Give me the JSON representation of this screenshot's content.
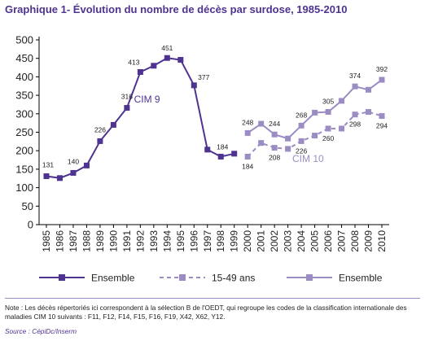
{
  "title": "Graphique 1- Évolution du nombre de décès par surdose, 1985-2010",
  "note": "Note : Les décès répertoriés ici correspondent à la sélection B de l'OEDT, qui regroupe les codes de la classification internationale des maladies CIM 10 suivants : F11, F12, F14, F15, F16, F19, X42, X62, Y12.",
  "source": "Source : CépiDc/Inserm",
  "colors": {
    "cim9": "#4e3391",
    "cim10": "#9b8cc4",
    "title": "#4e3391"
  },
  "chart_data": {
    "type": "line",
    "title": "Graphique 1- Évolution du nombre de décès par surdose, 1985-2010",
    "xlabel": "",
    "ylabel": "",
    "ylim": [
      0,
      500
    ],
    "yticks": [
      0,
      50,
      100,
      150,
      200,
      250,
      300,
      350,
      400,
      450,
      500
    ],
    "x": [
      1985,
      1986,
      1987,
      1988,
      1989,
      1990,
      1991,
      1992,
      1993,
      1994,
      1995,
      1996,
      1997,
      1998,
      1999,
      2000,
      2001,
      2002,
      2003,
      2004,
      2005,
      2006,
      2007,
      2008,
      2009,
      2010
    ],
    "grid": false,
    "legend": "bottom",
    "annotations": [
      {
        "text": "CIM 9",
        "x": 1992.5,
        "y": 330
      },
      {
        "text": "CIM 10",
        "x": 2004.5,
        "y": 170
      }
    ],
    "series": [
      {
        "name": "Ensemble",
        "group": "CIM 9",
        "style": "solid",
        "x": [
          1985,
          1986,
          1987,
          1988,
          1989,
          1990,
          1991,
          1992,
          1993,
          1994,
          1995,
          1996,
          1997,
          1998,
          1999
        ],
        "values": [
          131,
          126,
          140,
          160,
          226,
          270,
          316,
          413,
          430,
          451,
          446,
          377,
          203,
          184,
          192
        ],
        "labels": {
          "1985": "131",
          "1987": "140",
          "1989": "226",
          "1991": "316",
          "1992": "413",
          "1994": "451",
          "1996": "377",
          "1998": "184"
        }
      },
      {
        "name": "15-49 ans",
        "group": "CIM 10",
        "style": "dashed",
        "x": [
          2000,
          2001,
          2002,
          2003,
          2004,
          2005,
          2006,
          2007,
          2008,
          2009,
          2010
        ],
        "values": [
          184,
          221,
          208,
          205,
          226,
          241,
          260,
          260,
          298,
          305,
          294
        ],
        "labels": {
          "2000": "184",
          "2002": "208",
          "2004": "226",
          "2006": "260",
          "2008": "298",
          "2010": "294"
        }
      },
      {
        "name": "Ensemble",
        "group": "CIM 10",
        "style": "solid",
        "x": [
          2000,
          2001,
          2002,
          2003,
          2004,
          2005,
          2006,
          2007,
          2008,
          2009,
          2010
        ],
        "values": [
          248,
          273,
          244,
          233,
          268,
          303,
          305,
          335,
          374,
          365,
          392
        ],
        "labels": {
          "2000": "248",
          "2002": "244",
          "2004": "268",
          "2006": "305",
          "2008": "374",
          "2010": "392"
        }
      }
    ]
  }
}
